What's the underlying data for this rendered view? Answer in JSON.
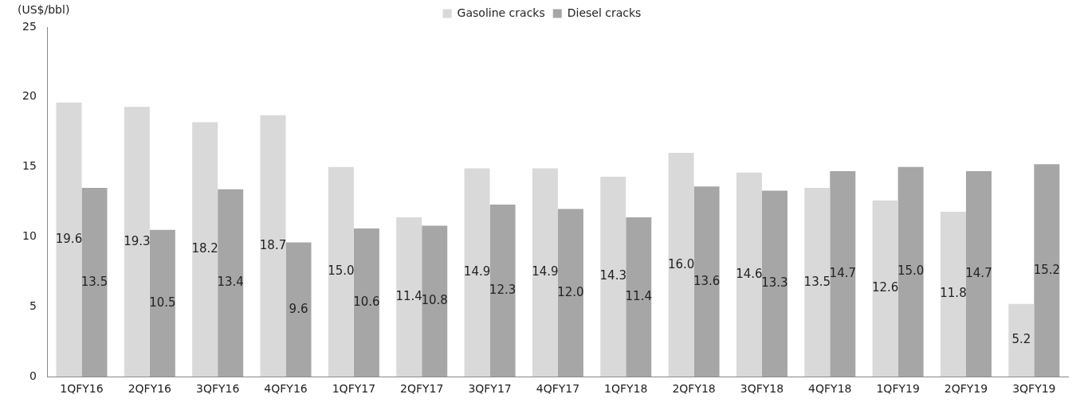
{
  "chart_data": {
    "type": "bar",
    "ylabel": "(US$/bbl)",
    "categories": [
      "1QFY16",
      "2QFY16",
      "3QFY16",
      "4QFY16",
      "1QFY17",
      "2QFY17",
      "3QFY17",
      "4QFY17",
      "1QFY18",
      "2QFY18",
      "3QFY18",
      "4QFY18",
      "1QFY19",
      "2QFY19",
      "3QFY19"
    ],
    "series": [
      {
        "name": "Gasoline cracks",
        "color": "#d9d9d9",
        "values": [
          19.6,
          19.3,
          18.2,
          18.7,
          15.0,
          11.4,
          14.9,
          14.9,
          14.3,
          16.0,
          14.6,
          13.5,
          12.6,
          11.8,
          5.2
        ],
        "value_labels": [
          "19.6",
          "19.3",
          "18.2",
          "18.7",
          "15.0",
          "11.4",
          "14.9",
          "14.9",
          "14.3",
          "16.0",
          "14.6",
          "13.5",
          "12.6",
          "11.8",
          "5.2"
        ]
      },
      {
        "name": "Diesel cracks",
        "color": "#a6a6a6",
        "values": [
          13.5,
          10.5,
          13.4,
          9.6,
          10.6,
          10.8,
          12.3,
          12.0,
          11.4,
          13.6,
          13.3,
          14.7,
          15.0,
          14.7,
          15.2
        ],
        "value_labels": [
          "13.5",
          "10.5",
          "13.4",
          "9.6",
          "10.6",
          "10.8",
          "12.3",
          "12.0",
          "11.4",
          "13.6",
          "13.3",
          "14.7",
          "15.0",
          "14.7",
          "15.2"
        ]
      }
    ],
    "ylim": [
      0,
      25
    ],
    "yticks": [
      0,
      5,
      10,
      15,
      20,
      25
    ],
    "grid": false,
    "legend": "top"
  }
}
